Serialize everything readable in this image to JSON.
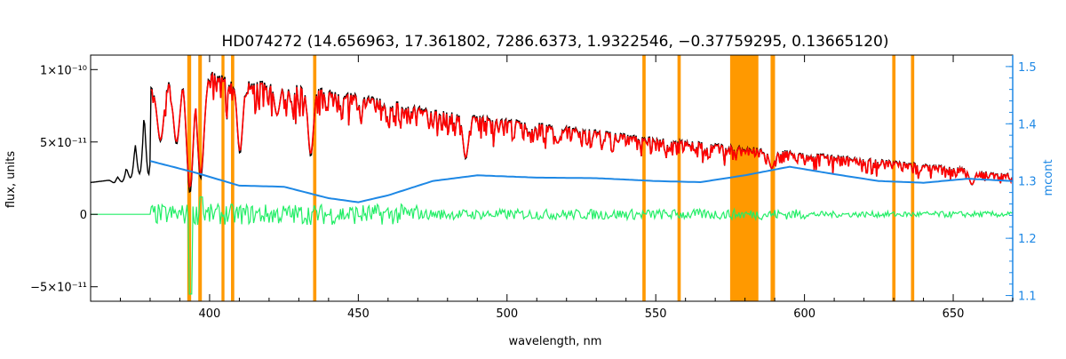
{
  "chart_data": {
    "type": "line",
    "title": "HD074272    (14.656963, 17.361802, 7286.6373, 1.9322546, −0.37759295, 0.13665120)",
    "xlabel": "wavelength, nm",
    "ylabel_left": "flux, units",
    "ylabel_right": "mcont",
    "xlim": [
      360,
      670
    ],
    "ylim_left": [
      -6e-11,
      1.1e-10
    ],
    "ylim_right": [
      1.09,
      1.52
    ],
    "x_ticks": [
      400,
      450,
      500,
      550,
      600,
      650
    ],
    "y_ticks_left": [
      {
        "value": 1e-10,
        "label": "1×10⁻¹⁰"
      },
      {
        "value": 5e-11,
        "label": "5×10⁻¹¹"
      },
      {
        "value": 0,
        "label": "0"
      },
      {
        "value": -5e-11,
        "label": "−5×10⁻¹¹"
      }
    ],
    "y_ticks_right": [
      1.1,
      1.2,
      1.3,
      1.4,
      1.5
    ],
    "colors": {
      "observed": "#000000",
      "model": "#ff0000",
      "residual": "#22ee66",
      "mcont": "#1e88e5",
      "mask": "#ff9900",
      "right_axis": "#1e88e5"
    },
    "mask_bands": [
      [
        392.5,
        393.8
      ],
      [
        396.2,
        397.4
      ],
      [
        404.0,
        405.0
      ],
      [
        407.2,
        408.3
      ],
      [
        434.8,
        435.9
      ],
      [
        545.5,
        546.6
      ],
      [
        557.3,
        558.4
      ],
      [
        575.0,
        584.5
      ],
      [
        588.6,
        590.1
      ],
      [
        629.5,
        630.6
      ],
      [
        635.8,
        636.9
      ]
    ],
    "absorption_lines": [
      {
        "wl": 383.5,
        "depth": 0.45
      },
      {
        "wl": 388.9,
        "depth": 0.5
      },
      {
        "wl": 393.4,
        "depth": 0.85
      },
      {
        "wl": 397.0,
        "depth": 0.75
      },
      {
        "wl": 410.2,
        "depth": 0.55
      },
      {
        "wl": 422.7,
        "depth": 0.25
      },
      {
        "wl": 434.0,
        "depth": 0.55
      },
      {
        "wl": 486.1,
        "depth": 0.45
      },
      {
        "wl": 517.0,
        "depth": 0.2
      },
      {
        "wl": 589.0,
        "depth": 0.3
      },
      {
        "wl": 656.3,
        "depth": 0.35
      }
    ],
    "mcont_curve": {
      "x": [
        380,
        395,
        410,
        425,
        440,
        450,
        460,
        475,
        490,
        510,
        530,
        550,
        565,
        580,
        595,
        610,
        625,
        640,
        655,
        670
      ],
      "y": [
        1.335,
        1.315,
        1.292,
        1.29,
        1.27,
        1.263,
        1.275,
        1.3,
        1.31,
        1.306,
        1.305,
        1.3,
        1.298,
        1.31,
        1.325,
        1.312,
        1.3,
        1.297,
        1.304,
        1.3
      ]
    },
    "observed_envelope": {
      "x": [
        360,
        368,
        372,
        376,
        380,
        390,
        400,
        410,
        430,
        450,
        480,
        500,
        550,
        600,
        650,
        670
      ],
      "y": [
        2.2e-11,
        2.4e-11,
        3.2e-11,
        5.5e-11,
        8.8e-11,
        9.8e-11,
        9.9e-11,
        9.3e-11,
        9e-11,
        8.3e-11,
        7.1e-11,
        6.6e-11,
        5.3e-11,
        4.3e-11,
        3.3e-11,
        2.8e-11
      ]
    },
    "residual_range": [
      380,
      670
    ],
    "residual_amplitude": 6e-12
  }
}
